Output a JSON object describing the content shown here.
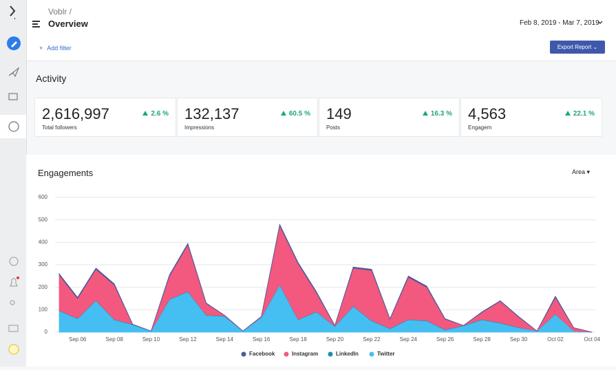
{
  "header": {
    "breadcrumb": "Voblr /",
    "title": "Overview",
    "date_range": "Feb 8, 2019 - Mar 7, 2019",
    "add_filter": "Add filter",
    "export_button": "Export Report"
  },
  "activity": {
    "title": "Activity",
    "cards": [
      {
        "value": "2,616,997",
        "change": "2.6 %",
        "label": "Total followers"
      },
      {
        "value": "132,137",
        "change": "60.5 %",
        "label": "Impressions"
      },
      {
        "value": "149",
        "change": "16.3 %",
        "label": "Posts"
      },
      {
        "value": "4,563",
        "change": "22.1 %",
        "label": "Engagem"
      }
    ]
  },
  "engagements": {
    "title": "Engagements",
    "view_selector": "Area"
  },
  "chart_data": {
    "type": "stacked-area",
    "categories": [
      null,
      "Sep 06",
      null,
      "Sep 08",
      null,
      "Sep 10",
      null,
      "Sep 12",
      null,
      "Sep 14",
      null,
      "Sep 16",
      null,
      "Sep 18",
      null,
      "Sep 20",
      null,
      "Sep 22",
      null,
      "Sep 24",
      null,
      "Sep 26",
      null,
      "Sep 28",
      null,
      "Sep 30",
      null,
      "Oct 02",
      null,
      "Oct 04"
    ],
    "series": [
      {
        "name": "Twitter",
        "color": "#45bff2",
        "values": [
          95,
          60,
          140,
          55,
          33,
          5,
          145,
          180,
          75,
          70,
          5,
          65,
          210,
          55,
          90,
          25,
          115,
          50,
          15,
          55,
          50,
          10,
          28,
          55,
          40,
          20,
          5,
          80,
          5,
          0
        ]
      },
      {
        "name": "LinkedIn",
        "color": "#1b8fb3",
        "values": [
          2,
          2,
          2,
          2,
          2,
          0,
          2,
          2,
          2,
          2,
          0,
          2,
          2,
          2,
          2,
          2,
          2,
          2,
          2,
          2,
          2,
          2,
          2,
          2,
          2,
          2,
          0,
          2,
          0,
          0
        ]
      },
      {
        "name": "Instagram",
        "color": "#f3587f",
        "values": [
          158,
          88,
          138,
          153,
          0,
          0,
          103,
          208,
          51,
          3,
          0,
          3,
          263,
          248,
          83,
          3,
          168,
          223,
          41,
          188,
          148,
          46,
          0,
          31,
          96,
          46,
          0,
          73,
          15,
          0
        ]
      },
      {
        "name": "Facebook",
        "color": "#4b5a9a",
        "values": [
          5,
          5,
          5,
          5,
          0,
          0,
          5,
          5,
          2,
          0,
          0,
          0,
          5,
          5,
          5,
          0,
          5,
          5,
          2,
          5,
          5,
          2,
          0,
          2,
          2,
          2,
          0,
          5,
          0,
          0
        ]
      }
    ],
    "legend_order": [
      "Facebook",
      "Instagram",
      "LinkedIn",
      "Twitter"
    ],
    "ylim": [
      0,
      600
    ],
    "yticks": [
      0,
      100,
      200,
      300,
      400,
      500,
      600
    ],
    "grid": true
  }
}
